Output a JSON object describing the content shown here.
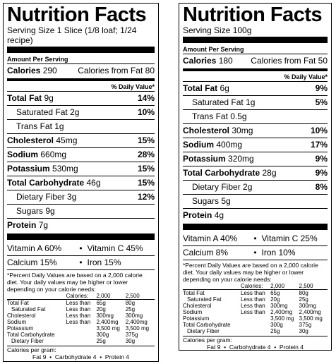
{
  "left": {
    "title": "Nutrition Facts",
    "serving": "Serving Size 1 Slice (1/8 loaf; 1/24 recipe)",
    "amount_per_serving": "Amount Per Serving",
    "calories_label": "Calories",
    "calories_value": "290",
    "calories_fat": "Calories from Fat 80",
    "dv_header": "% Daily Value*",
    "nutrients": [
      {
        "label": "Total Fat",
        "amount": "9g",
        "pct": "14%"
      },
      {
        "label": "Saturated Fat",
        "amount": "2g",
        "pct": "10%"
      },
      {
        "label": "Trans Fat",
        "amount": "1g",
        "pct": ""
      },
      {
        "label": "Cholesterol",
        "amount": "45mg",
        "pct": "15%"
      },
      {
        "label": "Sodium",
        "amount": "660mg",
        "pct": "28%"
      },
      {
        "label": "Potassium",
        "amount": "530mg",
        "pct": "15%"
      },
      {
        "label": "Total Carbohydrate",
        "amount": "46g",
        "pct": "15%"
      },
      {
        "label": "Dietary Fiber",
        "amount": "3g",
        "pct": "12%"
      },
      {
        "label": "Sugars",
        "amount": "9g",
        "pct": ""
      },
      {
        "label": "Protein",
        "amount": "7g",
        "pct": ""
      }
    ],
    "vitamins": [
      [
        "Vitamin A 60%",
        "Vitamin C 45%"
      ],
      [
        "Calcium 15%",
        "Iron 15%"
      ]
    ],
    "footnote": "*Percent Daily Values are based on a 2,000 calorie diet. Your daily values may be higher or lower depending on your calorie needs:"
  },
  "right": {
    "title": "Nutrition Facts",
    "serving": "Serving Size 100g",
    "amount_per_serving": "Amount Per Serving",
    "calories_label": "Calories",
    "calories_value": "180",
    "calories_fat": "Calories from Fat 50",
    "dv_header": "% Daily Value*",
    "nutrients": [
      {
        "label": "Total Fat",
        "amount": "6g",
        "pct": "9%"
      },
      {
        "label": "Saturated Fat",
        "amount": "1g",
        "pct": "5%"
      },
      {
        "label": "Trans Fat",
        "amount": "0.5g",
        "pct": ""
      },
      {
        "label": "Cholesterol",
        "amount": "30mg",
        "pct": "10%"
      },
      {
        "label": "Sodium",
        "amount": "400mg",
        "pct": "17%"
      },
      {
        "label": "Potassium",
        "amount": "320mg",
        "pct": "9%"
      },
      {
        "label": "Total Carbohydrate",
        "amount": "28g",
        "pct": "9%"
      },
      {
        "label": "Dietary Fiber",
        "amount": "2g",
        "pct": "8%"
      },
      {
        "label": "Sugars",
        "amount": "5g",
        "pct": ""
      },
      {
        "label": "Protein",
        "amount": "4g",
        "pct": ""
      }
    ],
    "vitamins": [
      [
        "Vitamin A 40%",
        "Vitamin C 25%"
      ],
      [
        "Calcium 8%",
        "Iron 10%"
      ]
    ],
    "footnote": "*Percent Daily Values are based on a 2,000 calorie diet. Your daily values may be higher or lower depending on your calorie needs:"
  },
  "dv_table": {
    "header": [
      "Calories:",
      "2,000",
      "2,500"
    ],
    "rows": [
      [
        "Total Fat",
        "Less than",
        "65g",
        "80g"
      ],
      [
        "Saturated Fat",
        "Less than",
        "20g",
        "25g"
      ],
      [
        "Cholesterol",
        "Less than",
        "300mg",
        "300mg"
      ],
      [
        "Sodium",
        "Less than",
        "2,400mg",
        "2,400mg"
      ],
      [
        "Potassium",
        "",
        "3,500 mg",
        "3,500 mg"
      ],
      [
        "Total Carbohydrate",
        "",
        "300g",
        "375g"
      ],
      [
        "Dietary Fiber",
        "",
        "25g",
        "30g"
      ]
    ]
  },
  "calories_per_gram": "Calories per gram:",
  "cpg_items": [
    "Fat 9",
    "Carbohydrate 4",
    "Protein 4"
  ],
  "bullet": "•"
}
